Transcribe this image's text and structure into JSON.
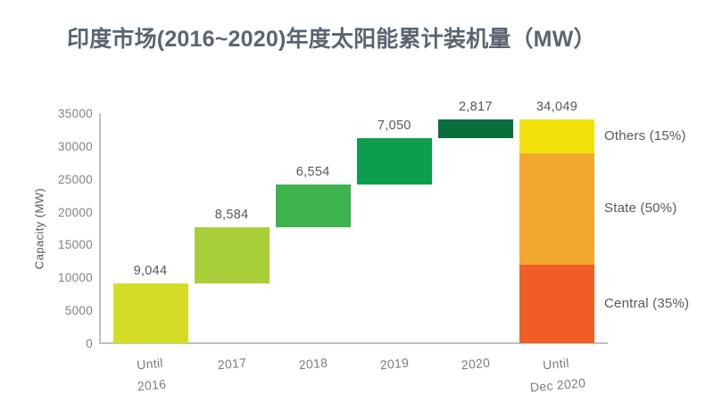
{
  "title": "印度市场(2016~2020)年度太阳能累计装机量（MW）",
  "colors": {
    "title_text": "#5b6470",
    "axis_line": "#bdbfc1",
    "tick_text": "#808285",
    "value_text": "#57585a",
    "background": "#ffffff"
  },
  "chart_data": {
    "type": "bar",
    "subtype": "waterfall-cumulative",
    "title": "印度市场(2016~2020)年度太阳能累计装机量（MW）",
    "xlabel": "",
    "ylabel": "Capacity (MW)",
    "ylim": [
      0,
      35000
    ],
    "grid": false,
    "yticks": [
      {
        "value": 0,
        "label": "0"
      },
      {
        "value": 5000,
        "label": "5000"
      },
      {
        "value": 10000,
        "label": "10000"
      },
      {
        "value": 15000,
        "label": "15000"
      },
      {
        "value": 20000,
        "label": "20000"
      },
      {
        "value": 25000,
        "label": "25000"
      },
      {
        "value": 30000,
        "label": "30000"
      },
      {
        "value": 35000,
        "label": "35000"
      }
    ],
    "steps": [
      {
        "category_lines": [
          "Until",
          "2016"
        ],
        "label": "9,044",
        "value": 9044,
        "color": "#d3dd26"
      },
      {
        "category_lines": [
          "2017"
        ],
        "label": "8,584",
        "value": 8584,
        "color": "#a9cf38"
      },
      {
        "category_lines": [
          "2018"
        ],
        "label": "6,554",
        "value": 6554,
        "color": "#3cb44b"
      },
      {
        "category_lines": [
          "2019"
        ],
        "label": "7,050",
        "value": 7050,
        "color": "#0c9e4c"
      },
      {
        "category_lines": [
          "2020"
        ],
        "label": "2,817",
        "value": 2817,
        "color": "#086e3c"
      }
    ],
    "total": {
      "category_lines": [
        "Until",
        "Dec 2020"
      ],
      "label": "34,049",
      "value": 34049,
      "segments": [
        {
          "name": "Central",
          "legend": "Central (35%)",
          "fraction": 0.35,
          "color": "#f15e25"
        },
        {
          "name": "State",
          "legend": "State (50%)",
          "fraction": 0.5,
          "color": "#f1a82c"
        },
        {
          "name": "Others",
          "legend": "Others (15%)",
          "fraction": 0.15,
          "color": "#f4e10c"
        }
      ]
    },
    "legend_position": "right-of-total-bar"
  }
}
